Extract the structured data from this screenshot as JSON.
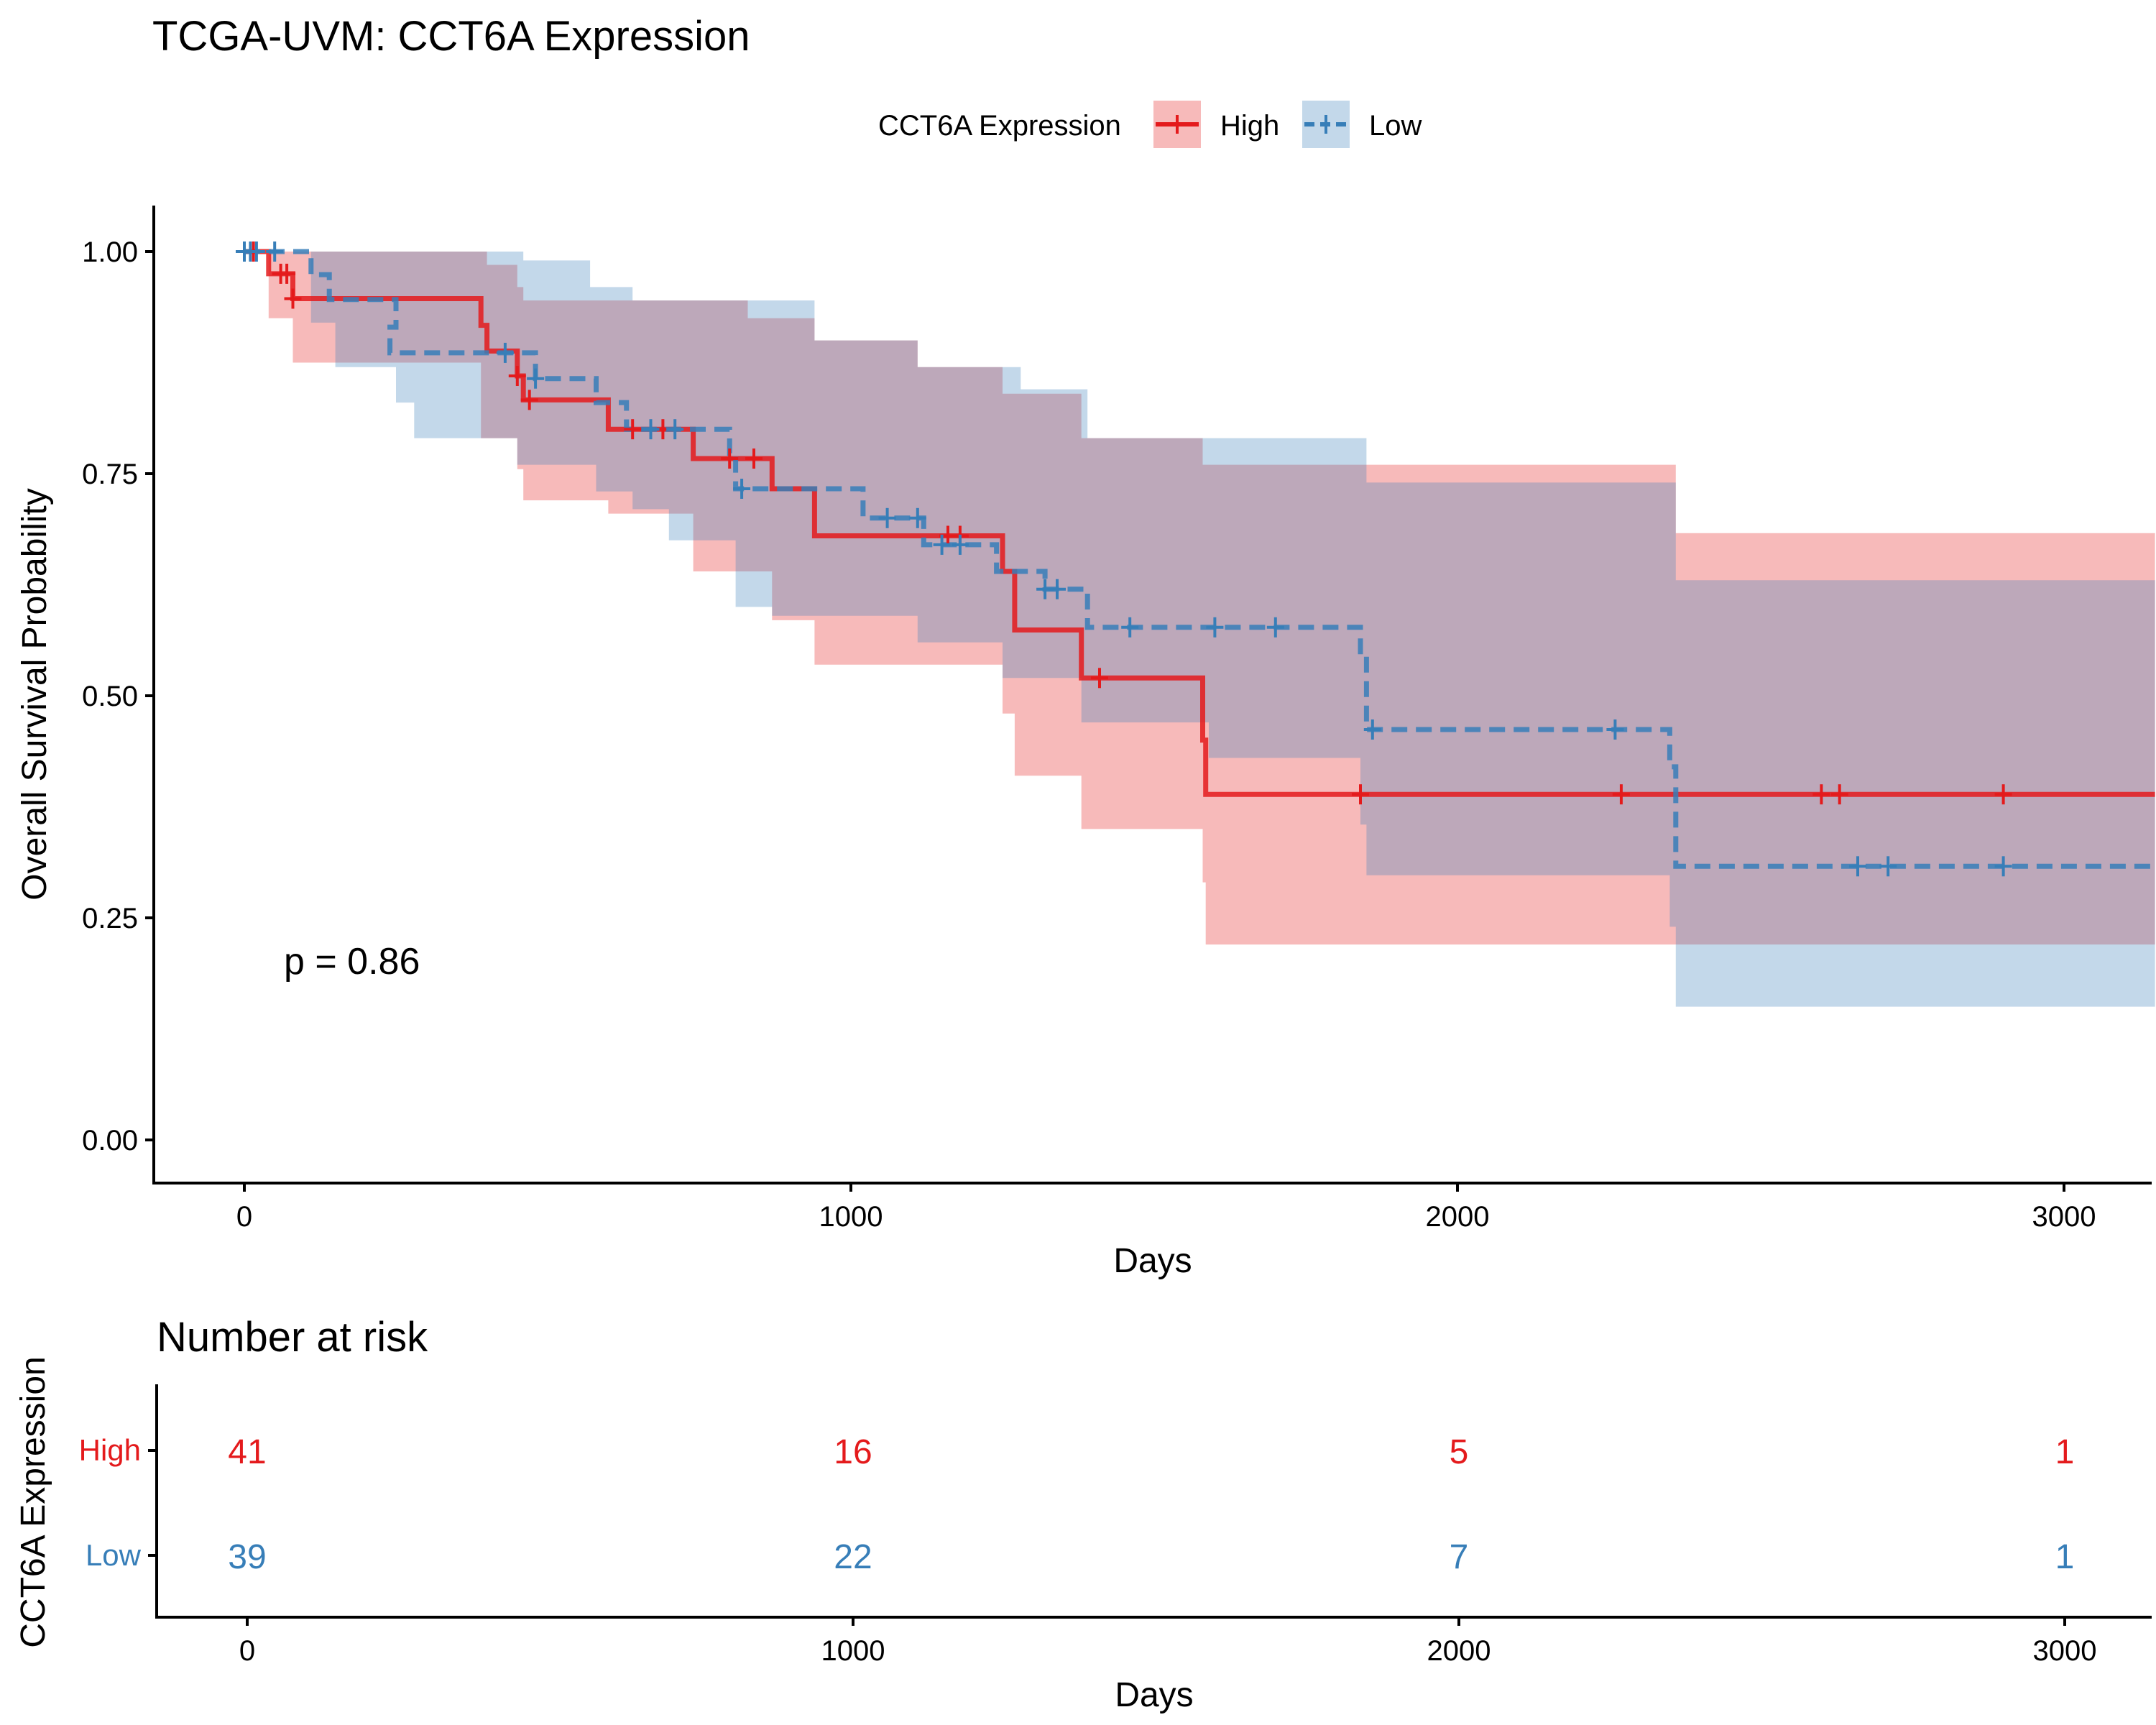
{
  "chart_data": [
    {
      "type": "line",
      "subtype": "kaplan-meier",
      "title": "TCGA-UVM: CCT6A Expression",
      "xlabel": "Days",
      "ylabel": "Overall Survival Probability",
      "xlim": [
        -150,
        3150
      ],
      "ylim": [
        -0.05,
        1.05
      ],
      "x_ticks": [
        0,
        1000,
        2000,
        3000
      ],
      "y_ticks": [
        0.0,
        0.25,
        0.5,
        0.75,
        1.0
      ],
      "y_tick_labels": [
        "0.00",
        "0.25",
        "0.50",
        "0.75",
        "1.00"
      ],
      "legend": {
        "title": "CCT6A Expression",
        "position": "top"
      },
      "annotation": "p = 0.86",
      "grid": false,
      "series": [
        {
          "name": "High",
          "color": "#E41A1C",
          "line_style": "solid",
          "steps": [
            [
              0,
              1.0
            ],
            [
              40,
              0.975
            ],
            [
              80,
              0.947
            ],
            [
              390,
              0.917
            ],
            [
              400,
              0.888
            ],
            [
              450,
              0.86
            ],
            [
              460,
              0.833
            ],
            [
              600,
              0.8
            ],
            [
              740,
              0.767
            ],
            [
              870,
              0.733
            ],
            [
              940,
              0.68
            ],
            [
              1250,
              0.64
            ],
            [
              1270,
              0.574
            ],
            [
              1380,
              0.52
            ],
            [
              1580,
              0.45
            ],
            [
              1585,
              0.389
            ],
            [
              3150,
              0.389
            ]
          ],
          "ci_upper": [
            [
              0,
              1.0
            ],
            [
              40,
              1.0
            ],
            [
              100,
              1.0
            ],
            [
              400,
              0.985
            ],
            [
              450,
              0.96
            ],
            [
              460,
              0.945
            ],
            [
              740,
              0.945
            ],
            [
              830,
              0.925
            ],
            [
              940,
              0.9
            ],
            [
              1110,
              0.87
            ],
            [
              1250,
              0.84
            ],
            [
              1380,
              0.79
            ],
            [
              1580,
              0.76
            ],
            [
              2350,
              0.76
            ],
            [
              2360,
              0.683
            ],
            [
              3150,
              0.683
            ]
          ],
          "ci_lower": [
            [
              0,
              1.0
            ],
            [
              40,
              0.925
            ],
            [
              80,
              0.875
            ],
            [
              390,
              0.79
            ],
            [
              450,
              0.755
            ],
            [
              460,
              0.72
            ],
            [
              600,
              0.705
            ],
            [
              740,
              0.64
            ],
            [
              870,
              0.585
            ],
            [
              940,
              0.535
            ],
            [
              1250,
              0.48
            ],
            [
              1270,
              0.41
            ],
            [
              1380,
              0.35
            ],
            [
              1580,
              0.29
            ],
            [
              1585,
              0.22
            ],
            [
              3150,
              0.22
            ]
          ],
          "censor_x": [
            15,
            60,
            70,
            80,
            450,
            470,
            640,
            690,
            800,
            840,
            1160,
            1180,
            1410,
            1840,
            2270,
            2600,
            2630,
            2900
          ]
        },
        {
          "name": "Low",
          "color": "#377EB8",
          "line_style": "dashed",
          "steps": [
            [
              0,
              1.0
            ],
            [
              110,
              0.974
            ],
            [
              140,
              0.946
            ],
            [
              250,
              0.915
            ],
            [
              240,
              0.886
            ],
            [
              420,
              0.886
            ],
            [
              480,
              0.857
            ],
            [
              580,
              0.83
            ],
            [
              630,
              0.8
            ],
            [
              800,
              0.773
            ],
            [
              810,
              0.733
            ],
            [
              1020,
              0.7
            ],
            [
              1120,
              0.67
            ],
            [
              1240,
              0.64
            ],
            [
              1320,
              0.62
            ],
            [
              1390,
              0.577
            ],
            [
              1840,
              0.546
            ],
            [
              1850,
              0.462
            ],
            [
              2350,
              0.42
            ],
            [
              2360,
              0.308
            ],
            [
              3150,
              0.308
            ]
          ],
          "ci_upper": [
            [
              0,
              1.0
            ],
            [
              110,
              1.0
            ],
            [
              440,
              1.0
            ],
            [
              460,
              0.99
            ],
            [
              570,
              0.96
            ],
            [
              640,
              0.945
            ],
            [
              800,
              0.945
            ],
            [
              940,
              0.9
            ],
            [
              1110,
              0.87
            ],
            [
              1280,
              0.845
            ],
            [
              1390,
              0.79
            ],
            [
              1590,
              0.79
            ],
            [
              1840,
              0.79
            ],
            [
              1850,
              0.74
            ],
            [
              2350,
              0.74
            ],
            [
              2360,
              0.63
            ],
            [
              3150,
              0.63
            ]
          ],
          "ci_lower": [
            [
              0,
              1.0
            ],
            [
              110,
              0.92
            ],
            [
              150,
              0.87
            ],
            [
              250,
              0.83
            ],
            [
              280,
              0.79
            ],
            [
              400,
              0.79
            ],
            [
              450,
              0.76
            ],
            [
              580,
              0.73
            ],
            [
              640,
              0.71
            ],
            [
              700,
              0.675
            ],
            [
              810,
              0.6
            ],
            [
              870,
              0.59
            ],
            [
              1110,
              0.56
            ],
            [
              1250,
              0.52
            ],
            [
              1380,
              0.47
            ],
            [
              1590,
              0.43
            ],
            [
              1840,
              0.355
            ],
            [
              1850,
              0.298
            ],
            [
              2350,
              0.24
            ],
            [
              2360,
              0.15
            ],
            [
              3150,
              0.15
            ]
          ],
          "censor_x": [
            0,
            10,
            20,
            50,
            430,
            480,
            670,
            710,
            820,
            1060,
            1110,
            1150,
            1180,
            1320,
            1340,
            1460,
            1600,
            1700,
            1860,
            2260,
            2660,
            2710,
            2900
          ]
        }
      ]
    },
    {
      "type": "table",
      "title": "Number at risk",
      "ylabel": "CCT6A Expression",
      "xlabel": "Days",
      "x_ticks": [
        0,
        1000,
        2000,
        3000
      ],
      "rows": [
        {
          "name": "High",
          "color": "#E41A1C",
          "values": [
            41,
            16,
            5,
            1
          ]
        },
        {
          "name": "Low",
          "color": "#377EB8",
          "values": [
            39,
            22,
            7,
            1
          ]
        }
      ]
    }
  ]
}
